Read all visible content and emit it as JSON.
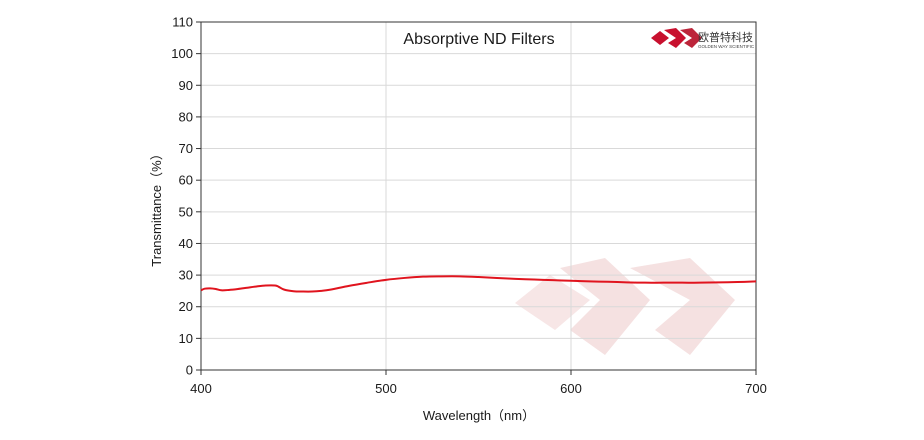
{
  "chart_data": {
    "type": "line",
    "title": "Absorptive ND Filters",
    "xlabel": "Wavelength（nm）",
    "ylabel": "Transmittance（%）",
    "xlim": [
      400,
      700
    ],
    "ylim": [
      0,
      110
    ],
    "xticks": [
      400,
      500,
      600,
      700
    ],
    "yticks": [
      0,
      10,
      20,
      30,
      40,
      50,
      60,
      70,
      80,
      90,
      100,
      110
    ],
    "grid": true,
    "series": [
      {
        "color": "#e0141e",
        "x": [
          400,
          402,
          405,
          408,
          411,
          415,
          420,
          425,
          430,
          435,
          440,
          442,
          445,
          450,
          455,
          460,
          465,
          470,
          480,
          490,
          500,
          510,
          520,
          530,
          540,
          550,
          560,
          570,
          580,
          590,
          600,
          610,
          620,
          630,
          640,
          650,
          660,
          670,
          680,
          690,
          700
        ],
        "y": [
          25.2,
          25.7,
          25.8,
          25.6,
          25.2,
          25.3,
          25.6,
          26.0,
          26.4,
          26.7,
          26.7,
          26.3,
          25.4,
          24.9,
          24.8,
          24.8,
          25.0,
          25.4,
          26.6,
          27.6,
          28.5,
          29.1,
          29.5,
          29.6,
          29.6,
          29.4,
          29.1,
          28.8,
          28.6,
          28.4,
          28.2,
          28.0,
          27.9,
          27.7,
          27.6,
          27.6,
          27.6,
          27.6,
          27.7,
          27.8,
          28.0
        ]
      }
    ]
  },
  "logo": {
    "cn_text": "欧普特科技",
    "en_text": "GOLDEN WAY SCIENTIFIC",
    "brand_color": "#c8102e"
  },
  "colors": {
    "grid": "#d9d9d9",
    "frame": "#333333",
    "watermark": "#f5e3e3"
  }
}
